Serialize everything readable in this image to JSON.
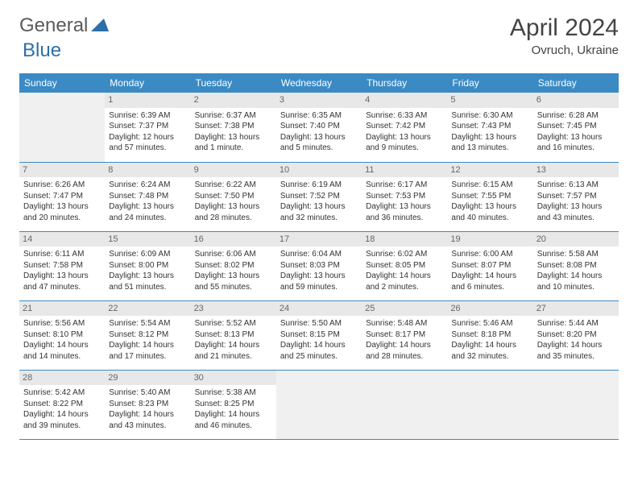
{
  "logo": {
    "text1": "General",
    "text2": "Blue",
    "color1": "#707070",
    "color2": "#2d6fa8"
  },
  "title": "April 2024",
  "location": "Ovruch, Ukraine",
  "colors": {
    "header_bg": "#3b8ac4",
    "header_fg": "#ffffff",
    "daynum_bg": "#e8e8e8",
    "empty_bg": "#f0f0f0",
    "border": "#3b8ac4"
  },
  "day_headers": [
    "Sunday",
    "Monday",
    "Tuesday",
    "Wednesday",
    "Thursday",
    "Friday",
    "Saturday"
  ],
  "weeks": [
    [
      null,
      {
        "n": "1",
        "sr": "Sunrise: 6:39 AM",
        "ss": "Sunset: 7:37 PM",
        "dl": "Daylight: 12 hours and 57 minutes."
      },
      {
        "n": "2",
        "sr": "Sunrise: 6:37 AM",
        "ss": "Sunset: 7:38 PM",
        "dl": "Daylight: 13 hours and 1 minute."
      },
      {
        "n": "3",
        "sr": "Sunrise: 6:35 AM",
        "ss": "Sunset: 7:40 PM",
        "dl": "Daylight: 13 hours and 5 minutes."
      },
      {
        "n": "4",
        "sr": "Sunrise: 6:33 AM",
        "ss": "Sunset: 7:42 PM",
        "dl": "Daylight: 13 hours and 9 minutes."
      },
      {
        "n": "5",
        "sr": "Sunrise: 6:30 AM",
        "ss": "Sunset: 7:43 PM",
        "dl": "Daylight: 13 hours and 13 minutes."
      },
      {
        "n": "6",
        "sr": "Sunrise: 6:28 AM",
        "ss": "Sunset: 7:45 PM",
        "dl": "Daylight: 13 hours and 16 minutes."
      }
    ],
    [
      {
        "n": "7",
        "sr": "Sunrise: 6:26 AM",
        "ss": "Sunset: 7:47 PM",
        "dl": "Daylight: 13 hours and 20 minutes."
      },
      {
        "n": "8",
        "sr": "Sunrise: 6:24 AM",
        "ss": "Sunset: 7:48 PM",
        "dl": "Daylight: 13 hours and 24 minutes."
      },
      {
        "n": "9",
        "sr": "Sunrise: 6:22 AM",
        "ss": "Sunset: 7:50 PM",
        "dl": "Daylight: 13 hours and 28 minutes."
      },
      {
        "n": "10",
        "sr": "Sunrise: 6:19 AM",
        "ss": "Sunset: 7:52 PM",
        "dl": "Daylight: 13 hours and 32 minutes."
      },
      {
        "n": "11",
        "sr": "Sunrise: 6:17 AM",
        "ss": "Sunset: 7:53 PM",
        "dl": "Daylight: 13 hours and 36 minutes."
      },
      {
        "n": "12",
        "sr": "Sunrise: 6:15 AM",
        "ss": "Sunset: 7:55 PM",
        "dl": "Daylight: 13 hours and 40 minutes."
      },
      {
        "n": "13",
        "sr": "Sunrise: 6:13 AM",
        "ss": "Sunset: 7:57 PM",
        "dl": "Daylight: 13 hours and 43 minutes."
      }
    ],
    [
      {
        "n": "14",
        "sr": "Sunrise: 6:11 AM",
        "ss": "Sunset: 7:58 PM",
        "dl": "Daylight: 13 hours and 47 minutes."
      },
      {
        "n": "15",
        "sr": "Sunrise: 6:09 AM",
        "ss": "Sunset: 8:00 PM",
        "dl": "Daylight: 13 hours and 51 minutes."
      },
      {
        "n": "16",
        "sr": "Sunrise: 6:06 AM",
        "ss": "Sunset: 8:02 PM",
        "dl": "Daylight: 13 hours and 55 minutes."
      },
      {
        "n": "17",
        "sr": "Sunrise: 6:04 AM",
        "ss": "Sunset: 8:03 PM",
        "dl": "Daylight: 13 hours and 59 minutes."
      },
      {
        "n": "18",
        "sr": "Sunrise: 6:02 AM",
        "ss": "Sunset: 8:05 PM",
        "dl": "Daylight: 14 hours and 2 minutes."
      },
      {
        "n": "19",
        "sr": "Sunrise: 6:00 AM",
        "ss": "Sunset: 8:07 PM",
        "dl": "Daylight: 14 hours and 6 minutes."
      },
      {
        "n": "20",
        "sr": "Sunrise: 5:58 AM",
        "ss": "Sunset: 8:08 PM",
        "dl": "Daylight: 14 hours and 10 minutes."
      }
    ],
    [
      {
        "n": "21",
        "sr": "Sunrise: 5:56 AM",
        "ss": "Sunset: 8:10 PM",
        "dl": "Daylight: 14 hours and 14 minutes."
      },
      {
        "n": "22",
        "sr": "Sunrise: 5:54 AM",
        "ss": "Sunset: 8:12 PM",
        "dl": "Daylight: 14 hours and 17 minutes."
      },
      {
        "n": "23",
        "sr": "Sunrise: 5:52 AM",
        "ss": "Sunset: 8:13 PM",
        "dl": "Daylight: 14 hours and 21 minutes."
      },
      {
        "n": "24",
        "sr": "Sunrise: 5:50 AM",
        "ss": "Sunset: 8:15 PM",
        "dl": "Daylight: 14 hours and 25 minutes."
      },
      {
        "n": "25",
        "sr": "Sunrise: 5:48 AM",
        "ss": "Sunset: 8:17 PM",
        "dl": "Daylight: 14 hours and 28 minutes."
      },
      {
        "n": "26",
        "sr": "Sunrise: 5:46 AM",
        "ss": "Sunset: 8:18 PM",
        "dl": "Daylight: 14 hours and 32 minutes."
      },
      {
        "n": "27",
        "sr": "Sunrise: 5:44 AM",
        "ss": "Sunset: 8:20 PM",
        "dl": "Daylight: 14 hours and 35 minutes."
      }
    ],
    [
      {
        "n": "28",
        "sr": "Sunrise: 5:42 AM",
        "ss": "Sunset: 8:22 PM",
        "dl": "Daylight: 14 hours and 39 minutes."
      },
      {
        "n": "29",
        "sr": "Sunrise: 5:40 AM",
        "ss": "Sunset: 8:23 PM",
        "dl": "Daylight: 14 hours and 43 minutes."
      },
      {
        "n": "30",
        "sr": "Sunrise: 5:38 AM",
        "ss": "Sunset: 8:25 PM",
        "dl": "Daylight: 14 hours and 46 minutes."
      },
      null,
      null,
      null,
      null
    ]
  ]
}
